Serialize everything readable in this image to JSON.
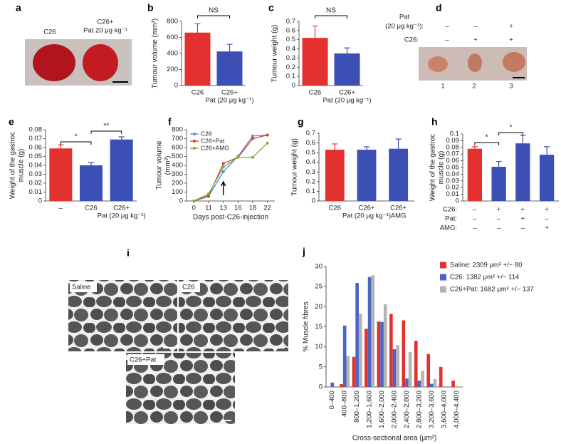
{
  "images": {
    "a": {
      "panel": "a",
      "labels": [
        "C26",
        [
          "C26+",
          "Pat 20 μg kg⁻¹"
        ]
      ]
    },
    "d": {
      "panel": "d",
      "row_labels": [
        [
          "Pat",
          "(20 μg kg⁻¹):"
        ],
        "C26:"
      ],
      "rows": [
        [
          "–",
          "–",
          "+"
        ],
        [
          "–",
          "+",
          "+"
        ]
      ],
      "lanes": [
        "1",
        "2",
        "3"
      ]
    },
    "i": {
      "panel": "i",
      "labels": [
        "Saline",
        "C26",
        "C26+Pat"
      ]
    }
  },
  "chart_data": [
    {
      "type": "bar",
      "panel": "b",
      "ylabel": [
        "Tumour volume (mm³)"
      ],
      "categories": [
        "C26",
        [
          "C26+",
          "Pat (20 μg kg⁻¹)"
        ]
      ],
      "values": [
        660,
        425
      ],
      "errors": [
        110,
        90
      ],
      "colors": [
        "#e2312f",
        "#3c4fb4"
      ],
      "ylim": [
        0,
        800
      ],
      "yticks": [
        0,
        200,
        400,
        600,
        800
      ],
      "annotations": [
        "NS"
      ]
    },
    {
      "type": "bar",
      "panel": "c",
      "ylabel": [
        "Tumour weight (g)"
      ],
      "categories": [
        "C26",
        [
          "C26+",
          "Pat (20 μg kg⁻¹)"
        ]
      ],
      "values": [
        0.52,
        0.35
      ],
      "errors": [
        0.13,
        0.06
      ],
      "colors": [
        "#e2312f",
        "#3c4fb4"
      ],
      "ylim": [
        0,
        0.7
      ],
      "yticks": [
        0,
        0.1,
        0.2,
        0.3,
        0.4,
        0.5,
        0.6,
        0.7
      ],
      "annotations": [
        "NS"
      ]
    },
    {
      "type": "bar",
      "panel": "e",
      "ylabel": [
        "Weight of the gastroc",
        "muscle (g)"
      ],
      "categories": [
        "–",
        "C26",
        [
          "C26+",
          "Pat (20 μg kg⁻¹)"
        ]
      ],
      "values": [
        0.059,
        0.04,
        0.069
      ],
      "errors": [
        0.004,
        0.003,
        0.003
      ],
      "colors": [
        "#e2312f",
        "#3c4fb4",
        "#3c4fb4"
      ],
      "ylim": [
        0,
        0.08
      ],
      "yticks": [
        0,
        0.01,
        0.02,
        0.03,
        0.04,
        0.05,
        0.06,
        0.07,
        0.08
      ],
      "annotations": [
        "*",
        "**"
      ]
    },
    {
      "type": "line",
      "panel": "f",
      "ylabel": [
        "Tumour volume",
        "(mm³)"
      ],
      "xlabel": "Days post-C26-injection",
      "categories": [
        "0",
        "11",
        "13",
        "16",
        "18",
        "22"
      ],
      "series": [
        {
          "name": "C26",
          "color": "#4a8fd6",
          "values": [
            0,
            50,
            330,
            500,
            730,
            740
          ]
        },
        {
          "name": "C26+Pat",
          "color": "#d83a3a",
          "values": [
            0,
            60,
            420,
            490,
            700,
            740
          ]
        },
        {
          "name": "C26+AMG",
          "color": "#8aa83a",
          "values": [
            0,
            80,
            380,
            490,
            490,
            650
          ]
        }
      ],
      "ylim": [
        0,
        800
      ],
      "yticks": [
        0,
        100,
        200,
        300,
        400,
        500,
        600,
        700,
        800
      ]
    },
    {
      "type": "bar",
      "panel": "g",
      "ylabel": [
        "Tumour weight (g)"
      ],
      "categories": [
        "C26",
        [
          "C26+",
          "Pat (20 μg kg⁻¹)"
        ],
        [
          "C26+",
          "AMG"
        ]
      ],
      "values": [
        0.53,
        0.53,
        0.54
      ],
      "errors": [
        0.06,
        0.03,
        0.1
      ],
      "colors": [
        "#e2312f",
        "#3c4fb4",
        "#3c4fb4"
      ],
      "ylim": [
        0,
        0.7
      ],
      "yticks": [
        0,
        0.1,
        0.2,
        0.3,
        0.4,
        0.5,
        0.6,
        0.7
      ]
    },
    {
      "type": "bar",
      "panel": "h",
      "ylabel": [
        "Weight of the gastroc",
        "muscle (g)"
      ],
      "categories": [
        null,
        null,
        null,
        null
      ],
      "values": [
        0.078,
        0.051,
        0.086,
        0.069
      ],
      "errors": [
        0.003,
        0.008,
        0.012,
        0.012
      ],
      "colors": [
        "#e2312f",
        "#3c4fb4",
        "#3c4fb4",
        "#3c4fb4"
      ],
      "ylim": [
        0,
        0.1
      ],
      "yticks": [
        0,
        0.01,
        0.02,
        0.03,
        0.04,
        0.05,
        0.06,
        0.07,
        0.08,
        0.09,
        0.1
      ],
      "annotations": [
        "*",
        "*"
      ],
      "conditions": [
        {
          "label": "C26:",
          "marks": [
            "–",
            "+",
            "+",
            "+"
          ]
        },
        {
          "label": "Pat:",
          "marks": [
            "–",
            "–",
            "+",
            "–"
          ]
        },
        {
          "label": "AMG:",
          "marks": [
            "–",
            "–",
            "–",
            "+"
          ]
        }
      ]
    },
    {
      "type": "bar",
      "panel": "j",
      "ylabel": [
        "% Muscle fibres"
      ],
      "xlabel": "Cross-sectional area (μm²)",
      "categories": [
        "0–400",
        "400–800",
        "800–1,200",
        "1,200–1,600",
        "1,600–2,000",
        "2,000–2,400",
        "2,400–2,800",
        "2,800–3,200",
        "3,200–3,600",
        "3,600–4,000",
        "4,000–4,400"
      ],
      "series": [
        {
          "name": "Saline: 2309 μm² +/− 80",
          "color": "#e2312f",
          "values": [
            0,
            0.7,
            7.5,
            14.5,
            16.3,
            18.2,
            16.6,
            11.5,
            8.2,
            5,
            1.6
          ]
        },
        {
          "name": "C26: 1382 μm² +/− 114",
          "color": "#4a66c4",
          "values": [
            1.1,
            15.3,
            25.9,
            27.4,
            16.2,
            9.4,
            2.1,
            1.6,
            0.8,
            0,
            0
          ]
        },
        {
          "name": "C26+Pat: 1682 μm² +/− 137",
          "color": "#b4b4b4",
          "values": [
            0,
            7.7,
            18.3,
            27.8,
            20.6,
            10.4,
            8.7,
            4,
            2,
            0,
            0
          ]
        }
      ],
      "ylim": [
        0,
        30
      ],
      "yticks": [
        0,
        5,
        10,
        15,
        20,
        25,
        30
      ]
    }
  ]
}
